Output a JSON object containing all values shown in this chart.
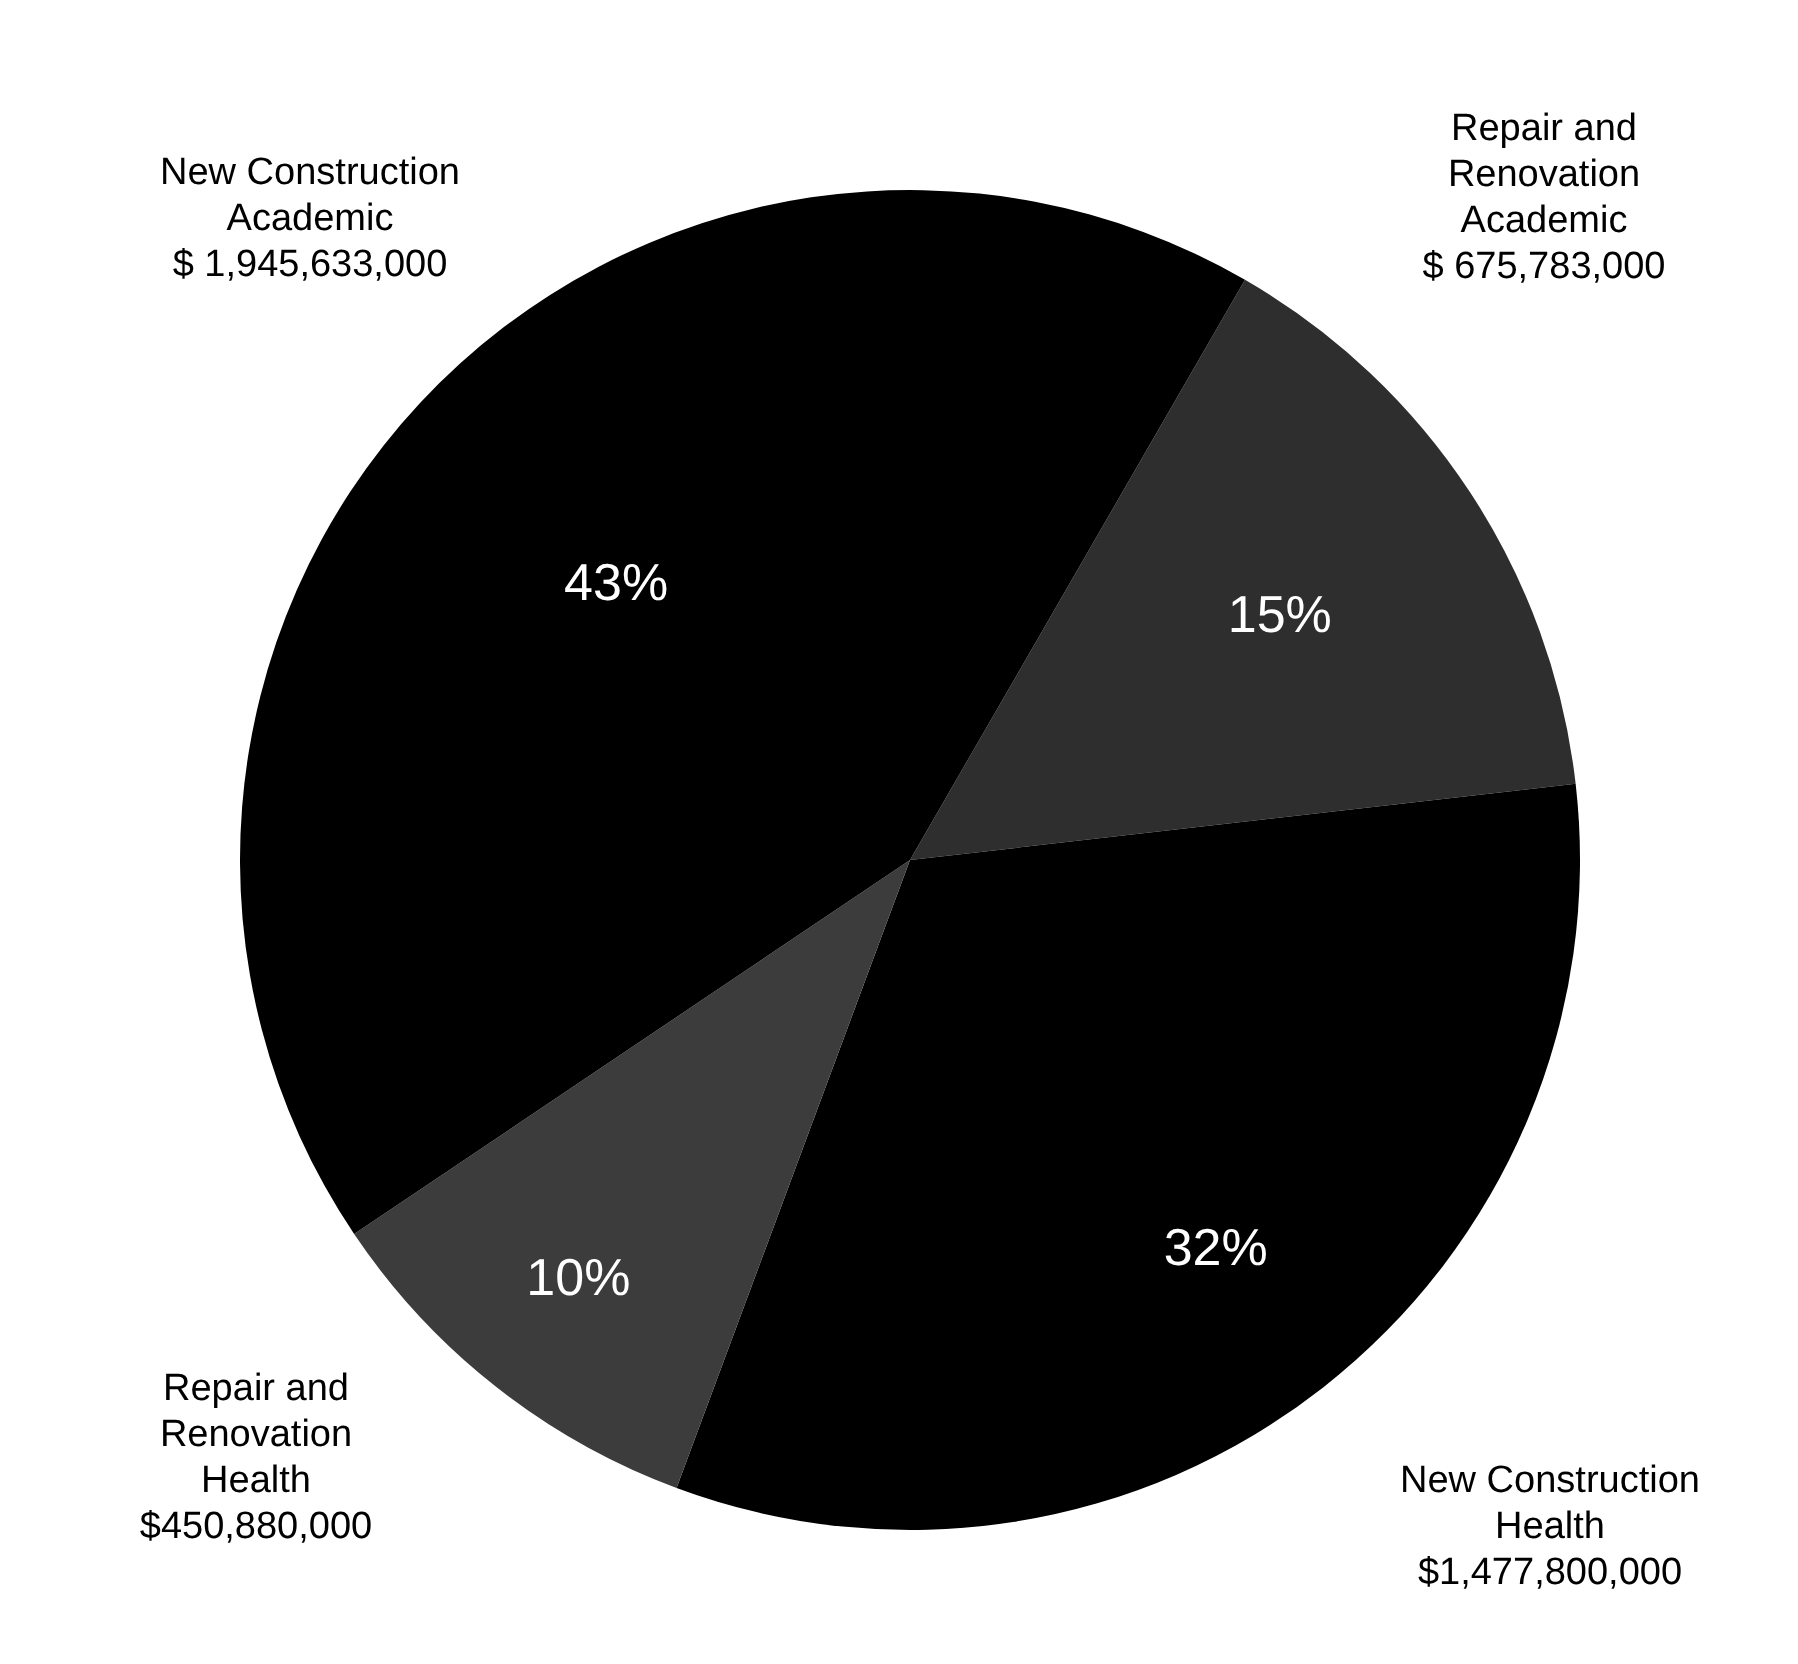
{
  "chart_data": {
    "type": "pie",
    "categories": [
      "Repair and Renovation Academic",
      "New Construction Health",
      "Repair and Renovation Health",
      "New Construction Academic"
    ],
    "values": [
      675783000,
      1477800000,
      450880000,
      1945633000
    ],
    "value_labels": [
      "$ 675,783,000",
      "$1,477,800,000",
      "$450,880,000",
      "$ 1,945,633,000"
    ],
    "colors": [
      "#2e2e2e",
      "#000000",
      "#3c3c3c",
      "#000000"
    ],
    "annotations": [
      {
        "text": "15%",
        "x": "Repair and Renovation Academic"
      },
      {
        "text": "32%",
        "x": "New Construction Health"
      },
      {
        "text": "10%",
        "x": "Repair and Renovation Health"
      },
      {
        "text": "43%",
        "x": "New Construction Academic"
      }
    ],
    "legend": false
  }
}
